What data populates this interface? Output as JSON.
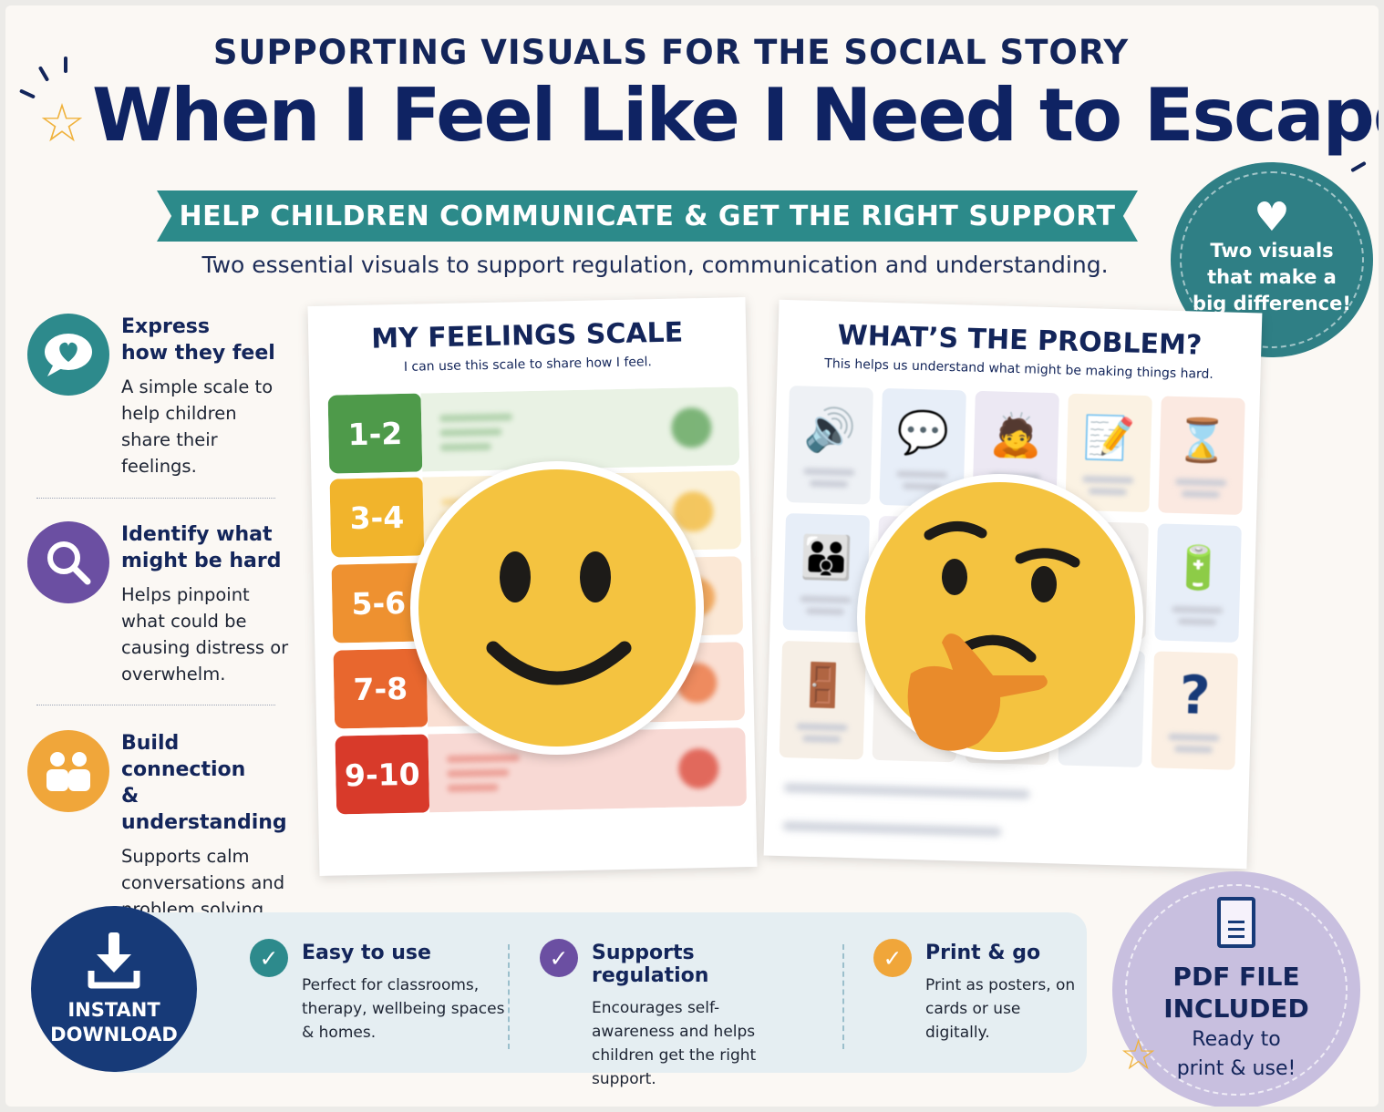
{
  "header": {
    "supertitle": "SUPPORTING VISUALS FOR THE SOCIAL STORY",
    "title": "When I Feel Like I Need to Escape",
    "ribbon": "HELP CHILDREN COMMUNICATE & GET THE RIGHT SUPPORT",
    "subtitle": "Two essential visuals to support regulation, communication and understanding."
  },
  "badge": {
    "icon": "heart-icon",
    "lines": [
      "Two visuals",
      "that make a",
      "big difference!"
    ]
  },
  "features": [
    {
      "icon": "heart-chat-icon",
      "color": "#2d8a8c",
      "head1": "Express",
      "head2": "how they feel",
      "body": "A simple scale to help children share their feelings."
    },
    {
      "icon": "search-icon",
      "color": "#6b4fa2",
      "head1": "Identify what",
      "head2": "might be hard",
      "body": "Helps pinpoint what could be causing distress or overwhelm."
    },
    {
      "icon": "people-icon",
      "color": "#f0a63a",
      "head1": "Build connection",
      "head2": "& understanding",
      "body": "Supports calm conversations and problem solving."
    }
  ],
  "feelings_card": {
    "title": "MY FEELINGS SCALE",
    "caption": "I can use this scale to share how I feel.",
    "levels": [
      {
        "label": "1-2",
        "color": "#4e9a4a",
        "tint": "#e9f2e4"
      },
      {
        "label": "3-4",
        "color": "#f1b42c",
        "tint": "#fbf1d9"
      },
      {
        "label": "5-6",
        "color": "#ee9130",
        "tint": "#fbe8d6"
      },
      {
        "label": "7-8",
        "color": "#e8672e",
        "tint": "#fadfd3"
      },
      {
        "label": "9-10",
        "color": "#d83a2a",
        "tint": "#f8d9d4"
      }
    ]
  },
  "problem_card": {
    "title": "WHAT’S THE PROBLEM?",
    "caption": "This helps us understand what might be making things hard.",
    "cells": [
      {
        "icon": "speaker-icon",
        "glyph": "🔊",
        "bg": "#eef1f5"
      },
      {
        "icon": "speech-bubbles-icon",
        "glyph": "💬",
        "bg": "#e7eef8"
      },
      {
        "icon": "child-overwhelmed-icon",
        "glyph": "🙇",
        "bg": "#ece8f3"
      },
      {
        "icon": "worksheet-icon",
        "glyph": "📝",
        "bg": "#fbf2e3"
      },
      {
        "icon": "hourglass-icon",
        "glyph": "⌛",
        "bg": "#fbe9e1"
      },
      {
        "icon": "group-of-people-icon",
        "glyph": "👪",
        "bg": "#e7eef8"
      },
      {
        "icon": "",
        "glyph": "",
        "bg": "#f1eef6"
      },
      {
        "icon": "",
        "glyph": "",
        "bg": "#f5eef3"
      },
      {
        "icon": "",
        "glyph": "",
        "bg": "#f4f1ee"
      },
      {
        "icon": "low-battery-icon",
        "glyph": "🔋",
        "bg": "#e7eef8"
      },
      {
        "icon": "bag-and-door-icon",
        "glyph": "🚪",
        "bg": "#f6efe6"
      },
      {
        "icon": "",
        "glyph": "",
        "bg": "#f4f1ee"
      },
      {
        "icon": "",
        "glyph": "",
        "bg": "#f4f1ee"
      },
      {
        "icon": "",
        "glyph": "",
        "bg": "#eef1f5"
      },
      {
        "icon": "question-mark-icon",
        "glyph": "?",
        "bg": "#fbefe3"
      }
    ]
  },
  "bottom": {
    "instant_icon": "download-icon",
    "instant_line1": "INSTANT",
    "instant_line2": "DOWNLOAD",
    "items": [
      {
        "color": "#2d8a8c",
        "head": "Easy to use",
        "body": "Perfect for classrooms, therapy, wellbeing spaces & homes."
      },
      {
        "color": "#6b4fa2",
        "head": "Supports regulation",
        "body": "Encourages self-awareness and helps children get the right support."
      },
      {
        "color": "#f0a63a",
        "head": "Print & go",
        "body": "Print as posters, on cards or use digitally."
      }
    ]
  },
  "pdf_badge": {
    "icon": "document-icon",
    "line1": "PDF FILE",
    "line2": "INCLUDED",
    "line3": "Ready to",
    "line4": "print & use!"
  }
}
